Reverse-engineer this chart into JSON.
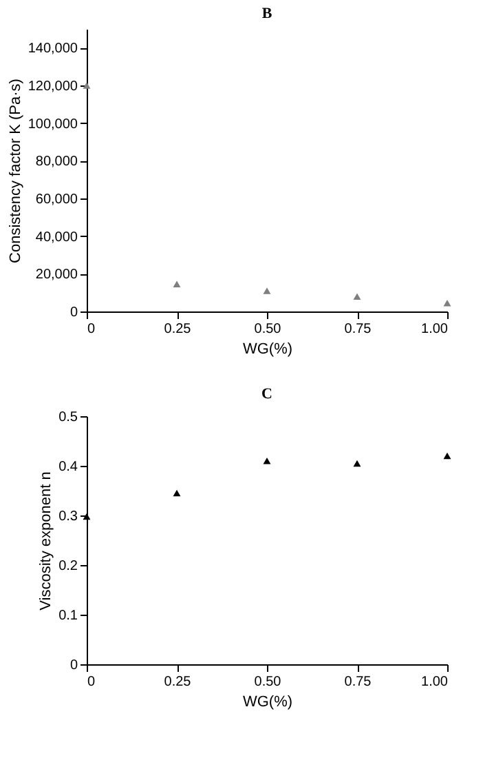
{
  "chart_data": [
    {
      "type": "scatter",
      "title": "B",
      "xlabel": "WG(%)",
      "ylabel": "Consistency factor K (Pa·s)",
      "marker": "triangle",
      "grid": false,
      "x": [
        0,
        0.25,
        0.5,
        0.75,
        1.0
      ],
      "series": [
        {
          "color": "#7f7f7f",
          "values": [
            120000,
            14500,
            11000,
            8000,
            4500
          ]
        }
      ],
      "xlim": [
        0,
        1.0
      ],
      "xticks": [
        0,
        {
          "value": 0.25,
          "label": "0.25"
        },
        {
          "value": 0.5,
          "label": "0.50"
        },
        {
          "value": 0.75,
          "label": "0.75"
        },
        {
          "value": 1.0,
          "label": "1.00"
        }
      ],
      "ylim": [
        0,
        150000
      ],
      "yticks": [
        0,
        {
          "value": 20000,
          "label": "20,000"
        },
        {
          "value": 40000,
          "label": "40,000"
        },
        {
          "value": 60000,
          "label": "60,000"
        },
        {
          "value": 80000,
          "label": "80,000"
        },
        {
          "value": 100000,
          "label": "100,000"
        },
        {
          "value": 120000,
          "label": "120,000"
        },
        {
          "value": 140000,
          "label": "140,000"
        }
      ]
    },
    {
      "type": "scatter",
      "title": "C",
      "xlabel": "WG(%)",
      "ylabel": "Viscosity exponent n",
      "marker": "triangle",
      "grid": false,
      "x": [
        0,
        0.25,
        0.5,
        0.75,
        1.0
      ],
      "series": [
        {
          "color": "#000000",
          "values": [
            0.298,
            0.345,
            0.41,
            0.405,
            0.42
          ]
        }
      ],
      "xlim": [
        0,
        1.0
      ],
      "xticks": [
        0,
        {
          "value": 0.25,
          "label": "0.25"
        },
        {
          "value": 0.5,
          "label": "0.50"
        },
        {
          "value": 0.75,
          "label": "0.75"
        },
        {
          "value": 1.0,
          "label": "1.00"
        }
      ],
      "ylim": [
        0,
        0.5
      ],
      "yticks": [
        0,
        0.1,
        0.2,
        0.3,
        0.4,
        0.5
      ]
    }
  ]
}
